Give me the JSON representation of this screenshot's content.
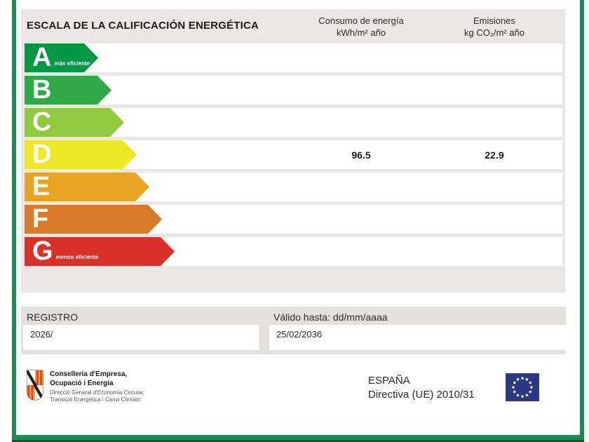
{
  "document": {
    "title": "ESCALA DE LA CALIFICACIÓN ENERGÉTICA",
    "columns": [
      {
        "label_line1": "Consumo de energía",
        "label_line2": "kWh/m² año"
      },
      {
        "label_line1": "Emisiones",
        "label_line2": "kg CO₂/m² año"
      }
    ]
  },
  "scale": {
    "ratings": [
      {
        "letter": "A",
        "note": "más eficiente",
        "color": "#009845",
        "arrow_width": 105
      },
      {
        "letter": "B",
        "note": "",
        "color": "#2fa947",
        "arrow_width": 124
      },
      {
        "letter": "C",
        "note": "",
        "color": "#92c83e",
        "arrow_width": 142
      },
      {
        "letter": "D",
        "note": "",
        "color": "#ece826",
        "arrow_width": 160
      },
      {
        "letter": "E",
        "note": "",
        "color": "#e8a524",
        "arrow_width": 178
      },
      {
        "letter": "F",
        "note": "",
        "color": "#d87a2a",
        "arrow_width": 196
      },
      {
        "letter": "G",
        "note": "menos eficiente",
        "color": "#d93029",
        "arrow_width": 214
      }
    ],
    "rated_row": "D",
    "consumption_value": "96.5",
    "emissions_value": "22.9"
  },
  "registry": {
    "label": "REGISTRO",
    "value": "2026/"
  },
  "validity": {
    "label": "Válido hasta: dd/mm/aaaa",
    "value": "25/02/2036"
  },
  "footer": {
    "organization": {
      "name_line1": "Conselleria d'Empresa,",
      "name_line2": "Ocupació i Energia",
      "dept_line1": "Direcció General d'Economia Circular,",
      "dept_line2": "Transició Energètica i Canvi Climàtic"
    },
    "country": "ESPAÑA",
    "directive": "Directiva (UE) 2010/31"
  },
  "colors": {
    "frame_green": "#1f8b52",
    "frame_green_dark": "#14532e",
    "panel_gray": "#e9e8e6",
    "panel_gray_dark": "#e2e1df",
    "eu_flag_blue": "#2c3a85",
    "eu_star": "#efe8c0"
  }
}
